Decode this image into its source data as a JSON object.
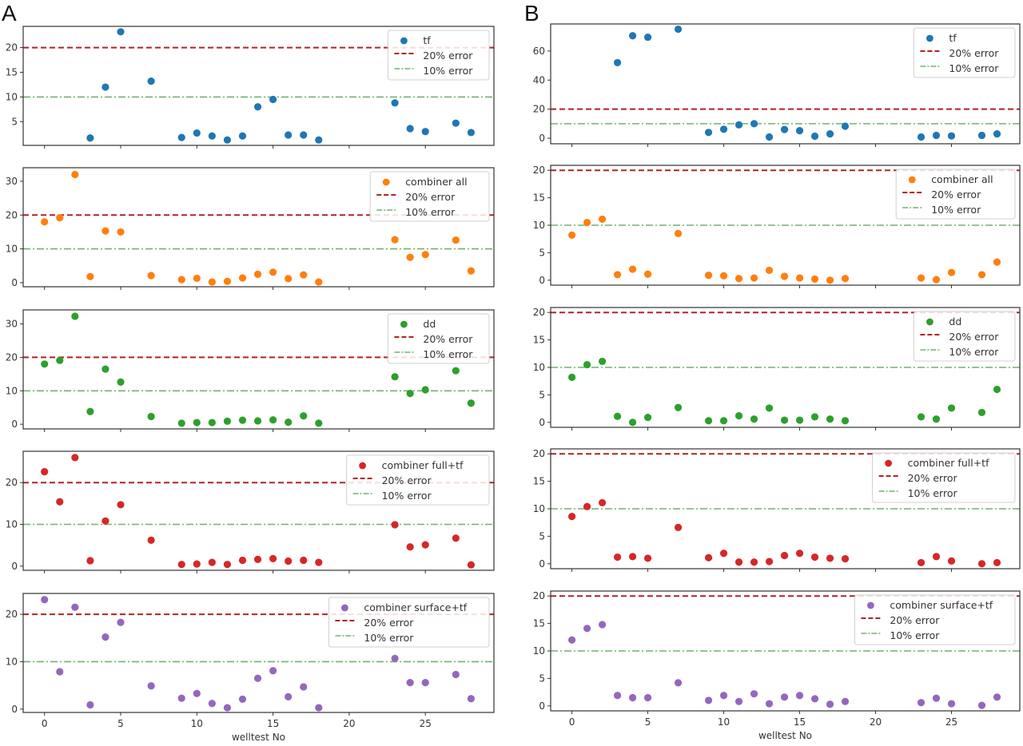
{
  "figure": {
    "panel_labels": [
      "A",
      "B"
    ],
    "xlabel": "welltest No"
  },
  "colors": {
    "tf": "#1f77b4",
    "combiner_all": "#ff7f0e",
    "dd": "#2ca02c",
    "combiner_full_tf": "#d62728",
    "combiner_surface_tf": "#9467bd",
    "err20": "#b22222",
    "err10": "#6fb36f"
  },
  "chart_data": [
    {
      "type": "scatter",
      "panel": "A",
      "title": "",
      "xlabel": "",
      "ylabel": "",
      "series": [
        {
          "name": "tf",
          "color_key": "tf",
          "x": [
            3,
            4,
            5,
            7,
            9,
            10,
            11,
            12,
            13,
            14,
            15,
            16,
            17,
            18,
            23,
            24,
            25,
            27,
            28
          ],
          "y": [
            1.7,
            12,
            23.2,
            13.2,
            1.8,
            2.7,
            2.1,
            1.3,
            2.1,
            8,
            9.5,
            2.3,
            2.3,
            1.3,
            8.8,
            3.6,
            3,
            4.7,
            2.8
          ]
        }
      ],
      "reference_lines": [
        {
          "name": "20% error",
          "y": 20,
          "style": "dashed"
        },
        {
          "name": "10% error",
          "y": 10,
          "style": "dashdot"
        }
      ],
      "xlim": [
        -1.4,
        29.5
      ],
      "ylim": [
        0.2,
        24.3
      ],
      "xticks": [
        0,
        5,
        10,
        15,
        20,
        25
      ],
      "yticks": [
        5,
        10,
        15,
        20
      ],
      "show_xticklabels": false,
      "legend": "upper-right",
      "legend_entries": [
        "tf",
        "20% error",
        "10% error"
      ]
    },
    {
      "type": "scatter",
      "panel": "A",
      "title": "",
      "xlabel": "",
      "ylabel": "",
      "series": [
        {
          "name": "combiner all",
          "color_key": "combiner_all",
          "x": [
            0,
            1,
            2,
            3,
            4,
            5,
            7,
            9,
            10,
            11,
            12,
            13,
            14,
            15,
            16,
            17,
            18,
            23,
            24,
            25,
            27,
            28
          ],
          "y": [
            18,
            19.2,
            32,
            1.8,
            15.3,
            15,
            2.1,
            0.9,
            1.3,
            0.2,
            0.4,
            1.4,
            2.5,
            3.1,
            1.2,
            2.3,
            0.2,
            12.7,
            7.5,
            8.3,
            12.6,
            3.5
          ]
        }
      ],
      "reference_lines": [
        {
          "name": "20% error",
          "y": 20,
          "style": "dashed"
        },
        {
          "name": "10% error",
          "y": 10,
          "style": "dashdot"
        }
      ],
      "xlim": [
        -1.4,
        29.5
      ],
      "ylim": [
        -1.2,
        34
      ],
      "xticks": [
        0,
        5,
        10,
        15,
        20,
        25
      ],
      "yticks": [
        0,
        10,
        20,
        30
      ],
      "show_xticklabels": false,
      "legend": "upper-right",
      "legend_entries": [
        "combiner all",
        "20% error",
        "10% error"
      ]
    },
    {
      "type": "scatter",
      "panel": "A",
      "title": "",
      "xlabel": "",
      "ylabel": "",
      "series": [
        {
          "name": "dd",
          "color_key": "dd",
          "x": [
            0,
            1,
            2,
            3,
            4,
            5,
            7,
            9,
            10,
            11,
            12,
            13,
            14,
            15,
            16,
            17,
            18,
            23,
            24,
            25,
            27,
            28
          ],
          "y": [
            18,
            19.1,
            32.3,
            3.8,
            16.5,
            12.6,
            2.3,
            0.3,
            0.5,
            0.5,
            0.9,
            1.2,
            1,
            1.3,
            0.6,
            2.5,
            0.3,
            14.2,
            9.2,
            10.3,
            16,
            6.3
          ]
        }
      ],
      "reference_lines": [
        {
          "name": "20% error",
          "y": 20,
          "style": "dashed"
        },
        {
          "name": "10% error",
          "y": 10,
          "style": "dashdot"
        }
      ],
      "xlim": [
        -1.4,
        29.5
      ],
      "ylim": [
        -1.4,
        34.2
      ],
      "xticks": [
        0,
        5,
        10,
        15,
        20,
        25
      ],
      "yticks": [
        0,
        10,
        20,
        30
      ],
      "show_xticklabels": false,
      "legend": "upper-right",
      "legend_entries": [
        "dd",
        "20% error",
        "10% error"
      ]
    },
    {
      "type": "scatter",
      "panel": "A",
      "title": "",
      "xlabel": "",
      "ylabel": "",
      "series": [
        {
          "name": "combiner full+tf",
          "color_key": "combiner_full_tf",
          "x": [
            0,
            1,
            2,
            3,
            4,
            5,
            7,
            9,
            10,
            11,
            12,
            13,
            14,
            15,
            16,
            17,
            18,
            23,
            24,
            25,
            27,
            28
          ],
          "y": [
            22.6,
            15.4,
            26,
            1.3,
            10.8,
            14.7,
            6.2,
            0.4,
            0.5,
            0.9,
            0.4,
            1.4,
            1.6,
            1.8,
            1.2,
            1.4,
            0.9,
            9.9,
            4.6,
            5.1,
            6.7,
            0.3
          ]
        }
      ],
      "reference_lines": [
        {
          "name": "20% error",
          "y": 20,
          "style": "dashed"
        },
        {
          "name": "10% error",
          "y": 10,
          "style": "dashdot"
        }
      ],
      "xlim": [
        -1.4,
        29.5
      ],
      "ylim": [
        -1,
        27.5
      ],
      "xticks": [
        0,
        5,
        10,
        15,
        20,
        25
      ],
      "yticks": [
        0,
        10,
        20
      ],
      "show_xticklabels": false,
      "legend": "upper-right",
      "legend_entries": [
        "combiner full+tf",
        "20% error",
        "10% error"
      ]
    },
    {
      "type": "scatter",
      "panel": "A",
      "title": "",
      "xlabel": "welltest No",
      "ylabel": "",
      "series": [
        {
          "name": "combiner surface+tf",
          "color_key": "combiner_surface_tf",
          "x": [
            0,
            1,
            2,
            3,
            4,
            5,
            7,
            9,
            10,
            11,
            12,
            13,
            14,
            15,
            16,
            17,
            18,
            23,
            24,
            25,
            27,
            28
          ],
          "y": [
            23.1,
            7.9,
            21.5,
            0.9,
            15.2,
            18.3,
            4.9,
            2.3,
            3.3,
            1.2,
            0.3,
            2.1,
            6.5,
            8.1,
            2.6,
            4.7,
            0.3,
            10.7,
            5.6,
            5.6,
            7.3,
            2.2
          ]
        }
      ],
      "reference_lines": [
        {
          "name": "20% error",
          "y": 20,
          "style": "dashed"
        },
        {
          "name": "10% error",
          "y": 10,
          "style": "dashdot"
        }
      ],
      "xlim": [
        -1.4,
        29.5
      ],
      "ylim": [
        -0.7,
        24.4
      ],
      "xticks": [
        0,
        5,
        10,
        15,
        20,
        25
      ],
      "yticks": [
        0,
        10,
        20
      ],
      "show_xticklabels": true,
      "legend": "upper-right",
      "legend_entries": [
        "combiner surface+tf",
        "20% error",
        "10% error"
      ]
    },
    {
      "type": "scatter",
      "panel": "B",
      "title": "",
      "xlabel": "",
      "ylabel": "",
      "series": [
        {
          "name": "tf",
          "color_key": "tf",
          "x": [
            3,
            4,
            5,
            7,
            9,
            10,
            11,
            12,
            13,
            14,
            15,
            16,
            17,
            18,
            23,
            24,
            25,
            27,
            28
          ],
          "y": [
            52,
            70.5,
            69.5,
            75,
            4,
            6.2,
            9.2,
            10,
            0.9,
            6,
            5.2,
            1.4,
            3,
            8.3,
            0.9,
            2,
            1.6,
            2,
            3
          ]
        }
      ],
      "reference_lines": [
        {
          "name": "20% error",
          "y": 20,
          "style": "dashed"
        },
        {
          "name": "10% error",
          "y": 10,
          "style": "dashdot"
        }
      ],
      "xlim": [
        -1.4,
        29.5
      ],
      "ylim": [
        -3.8,
        78.6
      ],
      "xticks": [
        0,
        5,
        10,
        15,
        20,
        25
      ],
      "yticks": [
        0,
        20,
        40,
        60
      ],
      "show_xticklabels": false,
      "legend": "upper-right",
      "legend_entries": [
        "tf",
        "20% error",
        "10% error"
      ]
    },
    {
      "type": "scatter",
      "panel": "B",
      "title": "",
      "xlabel": "",
      "ylabel": "",
      "series": [
        {
          "name": "combiner all",
          "color_key": "combiner_all",
          "x": [
            0,
            1,
            2,
            3,
            4,
            5,
            7,
            9,
            10,
            11,
            12,
            13,
            14,
            15,
            16,
            17,
            18,
            23,
            24,
            25,
            27,
            28
          ],
          "y": [
            8.2,
            10.5,
            11.1,
            1,
            2,
            1.1,
            8.5,
            0.9,
            0.8,
            0.3,
            0.4,
            1.8,
            0.7,
            0.4,
            0.2,
            0,
            0.3,
            0.4,
            0.1,
            1.4,
            1,
            3.3
          ]
        }
      ],
      "reference_lines": [
        {
          "name": "20% error",
          "y": 20,
          "style": "dashed"
        },
        {
          "name": "10% error",
          "y": 10,
          "style": "dashdot"
        }
      ],
      "xlim": [
        -1.4,
        29.5
      ],
      "ylim": [
        -0.9,
        20.9
      ],
      "xticks": [
        0,
        5,
        10,
        15,
        20,
        25
      ],
      "yticks": [
        0,
        5,
        10,
        15,
        20
      ],
      "show_xticklabels": false,
      "legend": "upper-right",
      "legend_entries": [
        "combiner all",
        "20% error",
        "10% error"
      ]
    },
    {
      "type": "scatter",
      "panel": "B",
      "title": "",
      "xlabel": "",
      "ylabel": "",
      "series": [
        {
          "name": "dd",
          "color_key": "dd",
          "x": [
            0,
            1,
            2,
            3,
            4,
            5,
            7,
            9,
            10,
            11,
            12,
            13,
            14,
            15,
            16,
            17,
            18,
            23,
            24,
            25,
            27,
            28
          ],
          "y": [
            8.2,
            10.5,
            11.1,
            1.1,
            0,
            0.9,
            2.7,
            0.3,
            0.3,
            1.2,
            0.6,
            2.6,
            0.4,
            0.4,
            1,
            0.6,
            0.3,
            1,
            0.6,
            2.6,
            1.8,
            6
          ]
        }
      ],
      "reference_lines": [
        {
          "name": "20% error",
          "y": 20,
          "style": "dashed"
        },
        {
          "name": "10% error",
          "y": 10,
          "style": "dashdot"
        }
      ],
      "xlim": [
        -1.4,
        29.5
      ],
      "ylim": [
        -0.9,
        20.9
      ],
      "xticks": [
        0,
        5,
        10,
        15,
        20,
        25
      ],
      "yticks": [
        0,
        5,
        10,
        15,
        20
      ],
      "show_xticklabels": false,
      "legend": "upper-right",
      "legend_entries": [
        "dd",
        "20% error",
        "10% error"
      ]
    },
    {
      "type": "scatter",
      "panel": "B",
      "title": "",
      "xlabel": "",
      "ylabel": "",
      "series": [
        {
          "name": "combiner full+tf",
          "color_key": "combiner_full_tf",
          "x": [
            0,
            1,
            2,
            3,
            4,
            5,
            7,
            9,
            10,
            11,
            12,
            13,
            14,
            15,
            16,
            17,
            18,
            23,
            24,
            25,
            27,
            28
          ],
          "y": [
            8.6,
            10.4,
            11.1,
            1.2,
            1.3,
            1,
            6.6,
            1.1,
            1.9,
            0.3,
            0.3,
            0.4,
            1.5,
            1.9,
            1.2,
            1,
            0.9,
            0.2,
            1.3,
            0.5,
            0,
            0.2
          ]
        }
      ],
      "reference_lines": [
        {
          "name": "20% error",
          "y": 20,
          "style": "dashed"
        },
        {
          "name": "10% error",
          "y": 10,
          "style": "dashdot"
        }
      ],
      "xlim": [
        -1.4,
        29.5
      ],
      "ylim": [
        -0.9,
        20.9
      ],
      "xticks": [
        0,
        5,
        10,
        15,
        20,
        25
      ],
      "yticks": [
        0,
        5,
        10,
        15,
        20
      ],
      "show_xticklabels": false,
      "legend": "upper-right",
      "legend_entries": [
        "combiner full+tf",
        "20% error",
        "10% error"
      ]
    },
    {
      "type": "scatter",
      "panel": "B",
      "title": "",
      "xlabel": "welltest No",
      "ylabel": "",
      "series": [
        {
          "name": "combiner surface+tf",
          "color_key": "combiner_surface_tf",
          "x": [
            0,
            1,
            2,
            3,
            4,
            5,
            7,
            9,
            10,
            11,
            12,
            13,
            14,
            15,
            16,
            17,
            18,
            23,
            24,
            25,
            27,
            28
          ],
          "y": [
            12,
            14.1,
            14.8,
            1.9,
            1.5,
            1.5,
            4.2,
            1,
            1.9,
            0.8,
            2.2,
            0.4,
            1.6,
            1.9,
            1.3,
            0.3,
            0.8,
            0.6,
            1.4,
            0.4,
            0.1,
            1.6
          ]
        }
      ],
      "reference_lines": [
        {
          "name": "20% error",
          "y": 20,
          "style": "dashed"
        },
        {
          "name": "10% error",
          "y": 10,
          "style": "dashdot"
        }
      ],
      "xlim": [
        -1.4,
        29.5
      ],
      "ylim": [
        -0.9,
        20.9
      ],
      "xticks": [
        0,
        5,
        10,
        15,
        20,
        25
      ],
      "yticks": [
        0,
        5,
        10,
        15,
        20
      ],
      "show_xticklabels": true,
      "legend": "upper-right",
      "legend_entries": [
        "combiner surface+tf",
        "20% error",
        "10% error"
      ]
    }
  ]
}
